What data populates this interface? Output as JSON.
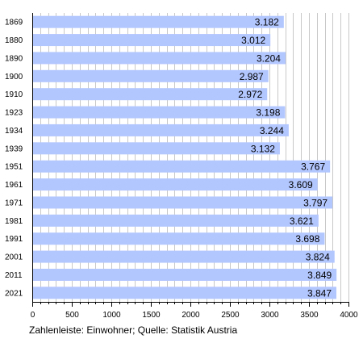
{
  "chart_data": {
    "type": "bar",
    "orientation": "horizontal",
    "categories": [
      "1869",
      "1880",
      "1890",
      "1900",
      "1910",
      "1923",
      "1934",
      "1939",
      "1951",
      "1961",
      "1971",
      "1981",
      "1991",
      "2001",
      "2011",
      "2021"
    ],
    "values": [
      3182,
      3012,
      3204,
      2987,
      2972,
      3198,
      3244,
      3132,
      3767,
      3609,
      3797,
      3621,
      3698,
      3824,
      3849,
      3847
    ],
    "value_labels": [
      "3.182",
      "3.012",
      "3.204",
      "2.987",
      "2.972",
      "3.198",
      "3.244",
      "3.132",
      "3.767",
      "3.609",
      "3.797",
      "3.621",
      "3.698",
      "3.824",
      "3.849",
      "3.847"
    ],
    "x_ticks": [
      0,
      500,
      1000,
      1500,
      2000,
      2500,
      3000,
      3500,
      4000
    ],
    "xlim": [
      0,
      4000
    ],
    "grid": true,
    "caption": "Zahlenleiste: Einwohner; Quelle: Statistik Austria",
    "colors": {
      "bar": "#b3c7ff",
      "grid": "#c8c8c8",
      "axis": "#000000"
    }
  }
}
